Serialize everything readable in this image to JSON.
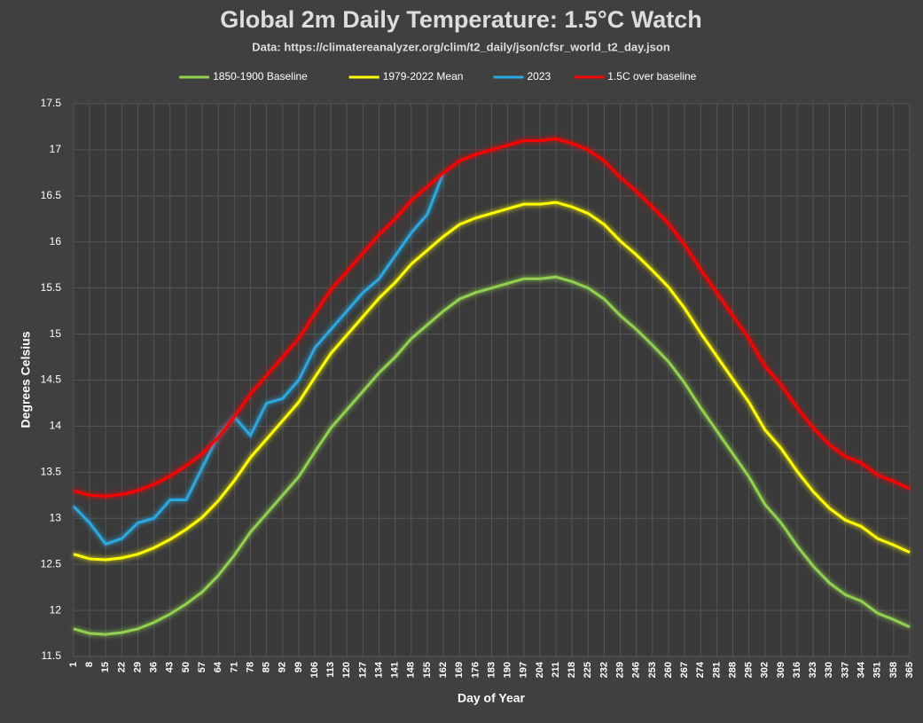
{
  "chart_data": {
    "type": "line",
    "title": "Global 2m Daily Temperature: 1.5°C Watch",
    "subtitle": "Data: https://climatereanalyzer.org/clim/t2_daily/json/cfsr_world_t2_day.json",
    "x_label": "Day of Year",
    "y_label": "Degrees Celsius",
    "x": [
      1,
      8,
      15,
      22,
      29,
      36,
      43,
      50,
      57,
      64,
      71,
      78,
      85,
      92,
      99,
      106,
      113,
      120,
      127,
      134,
      141,
      148,
      155,
      162,
      169,
      176,
      183,
      190,
      197,
      204,
      211,
      218,
      225,
      232,
      239,
      246,
      253,
      260,
      267,
      274,
      281,
      288,
      295,
      302,
      309,
      316,
      323,
      330,
      337,
      344,
      351,
      358,
      365
    ],
    "xlim": [
      1,
      365
    ],
    "xticks": [
      1,
      8,
      15,
      22,
      29,
      36,
      43,
      50,
      57,
      64,
      71,
      78,
      85,
      92,
      99,
      106,
      113,
      120,
      127,
      134,
      141,
      148,
      155,
      162,
      169,
      176,
      183,
      190,
      197,
      204,
      211,
      218,
      225,
      232,
      239,
      246,
      253,
      260,
      267,
      274,
      281,
      288,
      295,
      302,
      309,
      316,
      323,
      330,
      337,
      344,
      351,
      358,
      365
    ],
    "ylim": [
      11.5,
      17.5
    ],
    "yticks": [
      11.5,
      12,
      12.5,
      13,
      13.5,
      14,
      14.5,
      15,
      15.5,
      16,
      16.5,
      17,
      17.5
    ],
    "grid": true,
    "legend": "top",
    "series": [
      {
        "name": "1850-1900 Baseline",
        "color": "#92d050",
        "values": [
          11.8,
          11.75,
          11.74,
          11.76,
          11.8,
          11.87,
          11.96,
          12.07,
          12.2,
          12.38,
          12.6,
          12.85,
          13.05,
          13.25,
          13.45,
          13.72,
          13.98,
          14.18,
          14.38,
          14.58,
          14.75,
          14.95,
          15.1,
          15.25,
          15.38,
          15.45,
          15.5,
          15.55,
          15.6,
          15.6,
          15.62,
          15.57,
          15.5,
          15.38,
          15.2,
          15.05,
          14.88,
          14.7,
          14.47,
          14.2,
          13.95,
          13.7,
          13.45,
          13.15,
          12.95,
          12.7,
          12.48,
          12.3,
          12.17,
          12.1,
          11.97,
          11.9,
          11.82
        ]
      },
      {
        "name": "1979-2022 Mean",
        "color": "#ffff00",
        "values": [
          12.61,
          12.56,
          12.55,
          12.57,
          12.61,
          12.68,
          12.77,
          12.88,
          13.01,
          13.19,
          13.41,
          13.66,
          13.86,
          14.06,
          14.26,
          14.53,
          14.79,
          14.99,
          15.19,
          15.39,
          15.56,
          15.76,
          15.91,
          16.06,
          16.19,
          16.26,
          16.31,
          16.36,
          16.41,
          16.41,
          16.43,
          16.38,
          16.31,
          16.19,
          16.01,
          15.86,
          15.69,
          15.51,
          15.28,
          15.01,
          14.76,
          14.51,
          14.26,
          13.96,
          13.76,
          13.51,
          13.29,
          13.11,
          12.98,
          12.91,
          12.78,
          12.71,
          12.63
        ]
      },
      {
        "name": "2023",
        "color": "#29a9e1",
        "values": [
          13.13,
          12.95,
          12.72,
          12.78,
          12.95,
          13.0,
          13.2,
          13.2,
          13.55,
          13.9,
          14.1,
          13.9,
          14.25,
          14.3,
          14.5,
          14.85,
          15.05,
          15.25,
          15.45,
          15.6,
          15.85,
          16.1,
          16.3,
          16.75,
          null,
          null,
          null,
          null,
          null,
          null,
          null,
          null,
          null,
          null,
          null,
          null,
          null,
          null,
          null,
          null,
          null,
          null,
          null,
          null,
          null,
          null,
          null,
          null,
          null,
          null,
          null,
          null,
          null
        ]
      },
      {
        "name": "1.5C over baseline",
        "color": "#ff0000",
        "values": [
          13.3,
          13.25,
          13.24,
          13.26,
          13.3,
          13.37,
          13.46,
          13.57,
          13.7,
          13.88,
          14.1,
          14.35,
          14.55,
          14.75,
          14.95,
          15.22,
          15.48,
          15.68,
          15.88,
          16.08,
          16.25,
          16.45,
          16.6,
          16.75,
          16.88,
          16.95,
          17.0,
          17.05,
          17.1,
          17.1,
          17.12,
          17.07,
          17.0,
          16.88,
          16.7,
          16.55,
          16.38,
          16.2,
          15.97,
          15.7,
          15.45,
          15.2,
          14.95,
          14.65,
          14.45,
          14.2,
          13.98,
          13.8,
          13.67,
          13.6,
          13.47,
          13.4,
          13.32
        ]
      }
    ]
  }
}
